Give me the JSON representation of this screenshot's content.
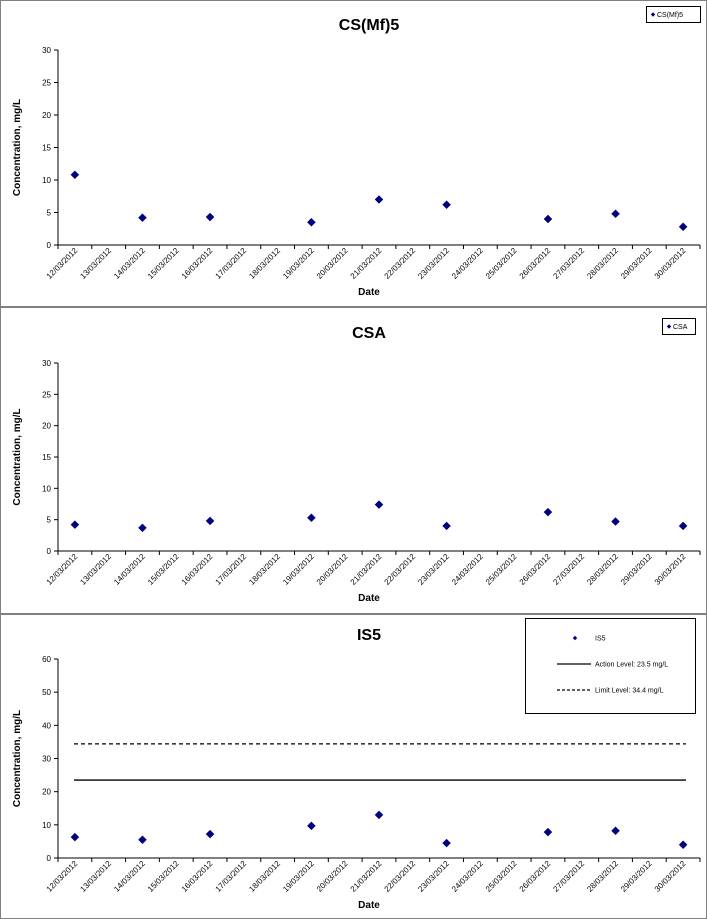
{
  "chart_data": [
    {
      "type": "scatter",
      "title": "CS(Mf)5",
      "xlabel": "Date",
      "ylabel": "Concentration, mg/L",
      "ylim": [
        0,
        30
      ],
      "yticks": [
        0,
        5,
        10,
        15,
        20,
        25,
        30
      ],
      "x_tick_labels": [
        "12/03/2012",
        "13/03/2012",
        "14/03/2012",
        "15/03/2012",
        "16/03/2012",
        "17/03/2012",
        "18/03/2012",
        "19/03/2012",
        "20/03/2012",
        "21/03/2012",
        "22/03/2012",
        "23/03/2012",
        "24/03/2012",
        "25/03/2012",
        "26/03/2012",
        "27/03/2012",
        "28/03/2012",
        "29/03/2012",
        "30/03/2012"
      ],
      "legend_position": "top-right",
      "series": [
        {
          "name": "CS(Mf)5",
          "marker": "diamond",
          "color": "#000080",
          "x": [
            "12/03/2012",
            "14/03/2012",
            "16/03/2012",
            "19/03/2012",
            "21/03/2012",
            "23/03/2012",
            "26/03/2012",
            "28/03/2012",
            "30/03/2012"
          ],
          "y": [
            10.8,
            4.2,
            4.3,
            3.5,
            7.0,
            6.2,
            4.0,
            4.8,
            2.8
          ]
        }
      ]
    },
    {
      "type": "scatter",
      "title": "CSA",
      "xlabel": "Date",
      "ylabel": "Concentration, mg/L",
      "ylim": [
        0,
        30
      ],
      "yticks": [
        0,
        5,
        10,
        15,
        20,
        25,
        30
      ],
      "x_tick_labels": [
        "12/03/2012",
        "13/03/2012",
        "14/03/2012",
        "15/03/2012",
        "16/03/2012",
        "17/03/2012",
        "18/03/2012",
        "19/03/2012",
        "20/03/2012",
        "21/03/2012",
        "22/03/2012",
        "23/03/2012",
        "24/03/2012",
        "25/03/2012",
        "26/03/2012",
        "27/03/2012",
        "28/03/2012",
        "29/03/2012",
        "30/03/2012"
      ],
      "legend_position": "top-right",
      "series": [
        {
          "name": "CSA",
          "marker": "diamond",
          "color": "#000080",
          "x": [
            "12/03/2012",
            "14/03/2012",
            "16/03/2012",
            "19/03/2012",
            "21/03/2012",
            "23/03/2012",
            "26/03/2012",
            "28/03/2012",
            "30/03/2012"
          ],
          "y": [
            4.2,
            3.7,
            4.8,
            5.3,
            7.4,
            4.0,
            6.2,
            4.7,
            4.0
          ]
        }
      ]
    },
    {
      "type": "scatter",
      "title": "IS5",
      "xlabel": "Date",
      "ylabel": "Concentration, mg/L",
      "ylim": [
        0,
        60
      ],
      "yticks": [
        0,
        10,
        20,
        30,
        40,
        50,
        60
      ],
      "x_tick_labels": [
        "12/03/2012",
        "13/03/2012",
        "14/03/2012",
        "15/03/2012",
        "16/03/2012",
        "17/03/2012",
        "18/03/2012",
        "19/03/2012",
        "20/03/2012",
        "21/03/2012",
        "22/03/2012",
        "23/03/2012",
        "24/03/2012",
        "25/03/2012",
        "26/03/2012",
        "27/03/2012",
        "28/03/2012",
        "29/03/2012",
        "30/03/2012"
      ],
      "legend_position": "top-right",
      "series": [
        {
          "name": "IS5",
          "marker": "diamond",
          "color": "#000080",
          "x": [
            "12/03/2012",
            "14/03/2012",
            "16/03/2012",
            "19/03/2012",
            "21/03/2012",
            "23/03/2012",
            "26/03/2012",
            "28/03/2012",
            "30/03/2012"
          ],
          "y": [
            6.3,
            5.5,
            7.2,
            9.7,
            13.0,
            4.5,
            7.8,
            8.2,
            4.0
          ]
        }
      ],
      "reference_lines": [
        {
          "name": "Action Level: 23.5 mg/L",
          "y": 23.5,
          "style": "solid",
          "color": "#000000"
        },
        {
          "name": "Limit Level: 34.4 mg/L",
          "y": 34.4,
          "style": "dashed",
          "color": "#000000"
        }
      ]
    }
  ]
}
